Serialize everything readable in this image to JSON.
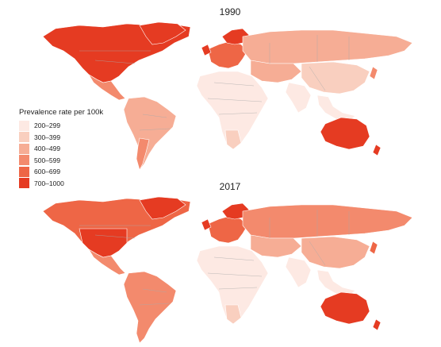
{
  "maps": [
    {
      "title": "1990"
    },
    {
      "title": "2017"
    }
  ],
  "legend": {
    "title": "Prevalence rate per 100k",
    "classes": [
      {
        "label": "200–299",
        "color": "#fde9e3"
      },
      {
        "label": "300–399",
        "color": "#f9cfbf"
      },
      {
        "label": "400–499",
        "color": "#f6ad95"
      },
      {
        "label": "500–599",
        "color": "#f38a6d"
      },
      {
        "label": "600–699",
        "color": "#ee6646"
      },
      {
        "label": "700–1000",
        "color": "#e53b22"
      }
    ]
  }
}
